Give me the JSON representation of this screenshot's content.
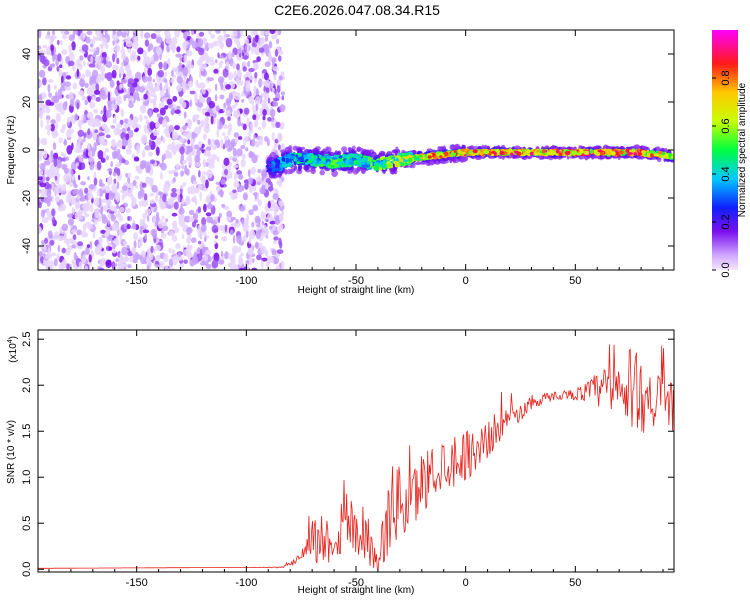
{
  "figure_title": "C2E6.2026.047.08.34.R15",
  "colors": {
    "background": "#ffffff",
    "axes": "#000000",
    "snr_line": "#e8201a",
    "speckle": "#7a10ee"
  },
  "chart_data": [
    {
      "type": "heatmap",
      "title": "C2E6.2026.047.08.34.R15",
      "xlabel": "Height of straight line (km)",
      "ylabel": "Frequency (Hz)",
      "xlim": [
        -195,
        95
      ],
      "ylim": [
        -50,
        50
      ],
      "xticks": [
        -150,
        -100,
        -50,
        0,
        50
      ],
      "xtick_labels": [
        "-150",
        "-100",
        "-50",
        "0",
        "50"
      ],
      "yticks": [
        -40,
        -20,
        0,
        20,
        40
      ],
      "ytick_labels": [
        "-40",
        "-20",
        "0",
        "20",
        "40"
      ],
      "noise_region_x": [
        -195,
        -86
      ],
      "ridge_x": [
        -90,
        -80,
        -70,
        -60,
        -50,
        -45,
        -40,
        -30,
        -20,
        -10,
        0,
        20,
        40,
        60,
        80,
        90,
        95
      ],
      "ridge_freq": [
        -8,
        -4,
        -4,
        -5,
        -4,
        -5,
        -6,
        -4,
        -3,
        -2,
        -1,
        -1,
        -1,
        -1,
        -1,
        -2,
        -3
      ],
      "ridge_amplitude": [
        0.3,
        0.45,
        0.5,
        0.55,
        0.5,
        0.55,
        0.6,
        0.7,
        0.8,
        0.85,
        0.9,
        0.9,
        0.95,
        0.95,
        0.9,
        0.75,
        0.6
      ],
      "colorbar": {
        "label": "Normalized spectral amplitude",
        "ticks": [
          0.0,
          0.2,
          0.4,
          0.6,
          0.8
        ],
        "tick_labels": [
          "0.0",
          "0.2",
          "0.4",
          "0.6",
          "0.8"
        ],
        "range": [
          0,
          1
        ]
      }
    },
    {
      "type": "line",
      "title": "",
      "xlabel": "Height of straight line (km)",
      "ylabel": "SNR (10 * v/v)",
      "y_multiplier": "(x10",
      "y_multiplier_exp": "4",
      "y_multiplier_close": ")",
      "xlim": [
        -195,
        95
      ],
      "ylim": [
        -0.03,
        2.6
      ],
      "xticks": [
        -150,
        -100,
        -50,
        0,
        50
      ],
      "xtick_labels": [
        "-150",
        "-100",
        "-50",
        "0",
        "50"
      ],
      "yticks": [
        0.0,
        0.5,
        1.0,
        1.5,
        2.0,
        2.5
      ],
      "ytick_labels": [
        "0.0",
        "0.5",
        "1.0",
        "1.5",
        "2.0",
        "2.5"
      ],
      "series": [
        {
          "name": "SNR",
          "x": [
            -195,
            -100,
            -85,
            -80,
            -75,
            -72,
            -70,
            -66,
            -62,
            -58,
            -55,
            -52,
            -49,
            -46,
            -43,
            -40,
            -37,
            -34,
            -31,
            -28,
            -25,
            -20,
            -15,
            -10,
            -5,
            0,
            5,
            10,
            15,
            20,
            25,
            30,
            35,
            40,
            45,
            50,
            55,
            60,
            65,
            70,
            75,
            80,
            85,
            90,
            95
          ],
          "y": [
            0.01,
            0.02,
            0.02,
            0.05,
            0.15,
            0.4,
            0.3,
            0.35,
            0.3,
            0.4,
            0.55,
            0.5,
            0.45,
            0.4,
            0.2,
            0.05,
            0.4,
            0.65,
            0.75,
            0.7,
            0.7,
            0.95,
            1.05,
            1.15,
            1.2,
            1.25,
            1.3,
            1.4,
            1.55,
            1.65,
            1.7,
            1.8,
            1.85,
            1.88,
            1.9,
            1.9,
            1.92,
            1.95,
            1.95,
            1.9,
            1.95,
            1.92,
            1.85,
            1.8,
            1.75
          ],
          "noise": [
            0,
            0,
            0.005,
            0.02,
            0.08,
            0.25,
            0.25,
            0.3,
            0.25,
            0.3,
            0.4,
            0.35,
            0.35,
            0.3,
            0.2,
            0.1,
            0.35,
            0.45,
            0.45,
            0.4,
            0.35,
            0.35,
            0.3,
            0.3,
            0.3,
            0.28,
            0.25,
            0.22,
            0.18,
            0.12,
            0.1,
            0.08,
            0.06,
            0.05,
            0.05,
            0.06,
            0.12,
            0.2,
            0.3,
            0.4,
            0.45,
            0.45,
            0.35,
            0.3,
            0.25
          ]
        }
      ]
    }
  ]
}
